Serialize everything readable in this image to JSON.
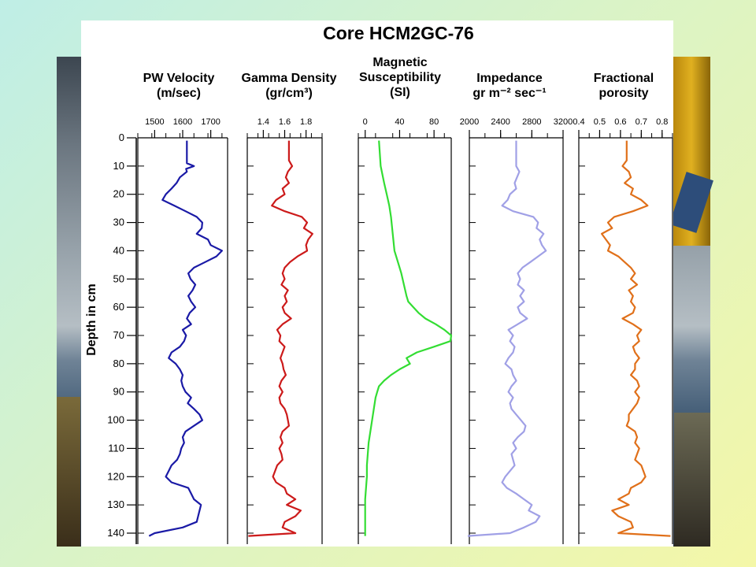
{
  "colors": {
    "pw_velocity": "#1a1aa6",
    "gamma_density": "#cc1a1a",
    "magnetic_susceptibility": "#33dd33",
    "impedance": "#a0a0e6",
    "fractional_porosity": "#e0701a"
  },
  "chart_data": {
    "type": "line",
    "title": "Core HCM2GC-76",
    "ylabel": "Depth in cm",
    "y_axis": {
      "min": 0,
      "max": 140,
      "ticks": [
        0,
        10,
        20,
        30,
        40,
        50,
        60,
        70,
        80,
        90,
        100,
        110,
        120,
        130,
        140
      ],
      "inverted": true
    },
    "panels": [
      {
        "id": "pw_velocity",
        "title_line1": "PW Velocity",
        "title_line2": "(m/sec)",
        "xlim": [
          1440,
          1760
        ],
        "ticks": [
          1500,
          1600,
          1700
        ],
        "tick_labels": [
          "1500",
          "1600",
          "1700"
        ],
        "series": {
          "depth": [
            1,
            9,
            10,
            11,
            12,
            14,
            16,
            18,
            20,
            22,
            24,
            26,
            28,
            30,
            32,
            34,
            36,
            38,
            40,
            42,
            44,
            46,
            48,
            50,
            52,
            54,
            56,
            58,
            60,
            62,
            64,
            66,
            68,
            70,
            72,
            74,
            76,
            78,
            80,
            82,
            84,
            86,
            88,
            90,
            92,
            94,
            96,
            98,
            100,
            102,
            104,
            106,
            108,
            110,
            112,
            114,
            116,
            118,
            120,
            122,
            124,
            126,
            128,
            130,
            132,
            134,
            136,
            138,
            140,
            141
          ],
          "values": [
            1615,
            1615,
            1640,
            1612,
            1615,
            1590,
            1578,
            1560,
            1540,
            1528,
            1570,
            1610,
            1650,
            1670,
            1668,
            1650,
            1690,
            1700,
            1740,
            1720,
            1680,
            1640,
            1620,
            1628,
            1645,
            1635,
            1620,
            1630,
            1645,
            1625,
            1615,
            1630,
            1600,
            1612,
            1605,
            1590,
            1560,
            1550,
            1575,
            1590,
            1600,
            1595,
            1600,
            1610,
            1630,
            1618,
            1640,
            1660,
            1670,
            1640,
            1610,
            1600,
            1605,
            1595,
            1590,
            1580,
            1560,
            1550,
            1540,
            1560,
            1620,
            1630,
            1640,
            1665,
            1660,
            1655,
            1650,
            1600,
            1500,
            1480
          ]
        }
      },
      {
        "id": "gamma_density",
        "title_line1": "Gamma Density",
        "title_line2": "(gr/cm³)",
        "xlim": [
          1.25,
          1.95
        ],
        "ticks": [
          1.4,
          1.6,
          1.8
        ],
        "tick_labels": [
          "1.4",
          "1.6",
          "1.8"
        ],
        "series": {
          "depth": [
            1,
            8,
            10,
            12,
            14,
            16,
            18,
            20,
            22,
            24,
            26,
            28,
            30,
            32,
            34,
            36,
            38,
            40,
            42,
            44,
            46,
            48,
            50,
            52,
            54,
            56,
            58,
            60,
            62,
            64,
            66,
            68,
            70,
            72,
            74,
            76,
            78,
            80,
            82,
            84,
            86,
            88,
            90,
            92,
            94,
            96,
            98,
            100,
            102,
            104,
            106,
            108,
            110,
            112,
            114,
            116,
            118,
            120,
            122,
            124,
            126,
            128,
            130,
            132,
            134,
            136,
            138,
            140,
            141
          ],
          "values": [
            1.64,
            1.64,
            1.67,
            1.63,
            1.61,
            1.64,
            1.58,
            1.6,
            1.52,
            1.48,
            1.6,
            1.76,
            1.81,
            1.78,
            1.86,
            1.82,
            1.8,
            1.81,
            1.72,
            1.65,
            1.6,
            1.58,
            1.6,
            1.57,
            1.63,
            1.6,
            1.62,
            1.58,
            1.6,
            1.66,
            1.58,
            1.53,
            1.56,
            1.55,
            1.6,
            1.58,
            1.56,
            1.58,
            1.59,
            1.61,
            1.57,
            1.55,
            1.58,
            1.55,
            1.56,
            1.6,
            1.62,
            1.63,
            1.64,
            1.58,
            1.56,
            1.58,
            1.55,
            1.57,
            1.58,
            1.53,
            1.51,
            1.49,
            1.52,
            1.6,
            1.62,
            1.7,
            1.62,
            1.75,
            1.7,
            1.6,
            1.58,
            1.7,
            1.26
          ]
        }
      },
      {
        "id": "magnetic_susceptibility",
        "title_line1": "Magnetic",
        "title_line2": "Susceptibility",
        "title_line3": "(SI)",
        "xlim": [
          -8,
          100
        ],
        "ticks": [
          0,
          40,
          80
        ],
        "tick_labels": [
          "0",
          "40",
          "80"
        ],
        "series": {
          "depth": [
            1,
            10,
            16,
            20,
            24,
            28,
            34,
            40,
            44,
            48,
            52,
            56,
            58,
            60,
            62,
            64,
            66,
            68,
            70,
            72,
            74,
            76,
            78,
            80,
            82,
            84,
            86,
            88,
            90,
            92,
            96,
            100,
            104,
            108,
            112,
            116,
            120,
            124,
            128,
            132,
            136,
            140,
            141
          ],
          "values": [
            16,
            18,
            22,
            25,
            28,
            30,
            32,
            34,
            38,
            42,
            45,
            48,
            50,
            56,
            62,
            70,
            82,
            92,
            100,
            99,
            80,
            60,
            48,
            52,
            40,
            30,
            22,
            16,
            14,
            12,
            10,
            8,
            6,
            4,
            3,
            2,
            2,
            1,
            0,
            0,
            0,
            0,
            0
          ]
        }
      },
      {
        "id": "impedance",
        "title_line1": "Impedance",
        "title_line2": "gr  m⁻² sec⁻¹",
        "xlim": [
          2000,
          3200
        ],
        "ticks": [
          2000,
          2400,
          2800,
          3200
        ],
        "tick_labels": [
          "2000",
          "2400",
          "2800",
          "3200"
        ],
        "series": {
          "depth": [
            1,
            10,
            12,
            14,
            16,
            18,
            20,
            22,
            24,
            26,
            28,
            30,
            32,
            34,
            36,
            38,
            40,
            42,
            44,
            46,
            48,
            50,
            52,
            54,
            56,
            58,
            60,
            62,
            64,
            66,
            68,
            70,
            72,
            74,
            76,
            78,
            80,
            82,
            84,
            86,
            88,
            90,
            92,
            94,
            96,
            98,
            100,
            102,
            104,
            106,
            108,
            110,
            112,
            114,
            116,
            118,
            120,
            122,
            124,
            126,
            128,
            130,
            132,
            134,
            136,
            138,
            140,
            141
          ],
          "values": [
            2600,
            2600,
            2640,
            2610,
            2580,
            2600,
            2520,
            2490,
            2420,
            2560,
            2820,
            2880,
            2860,
            2950,
            2900,
            2930,
            2980,
            2880,
            2780,
            2680,
            2620,
            2650,
            2620,
            2700,
            2650,
            2700,
            2620,
            2650,
            2740,
            2620,
            2500,
            2560,
            2520,
            2580,
            2560,
            2500,
            2460,
            2540,
            2560,
            2600,
            2540,
            2500,
            2560,
            2520,
            2540,
            2600,
            2660,
            2720,
            2700,
            2620,
            2560,
            2600,
            2540,
            2560,
            2580,
            2520,
            2460,
            2420,
            2480,
            2600,
            2700,
            2800,
            2760,
            2900,
            2850,
            2700,
            2520,
            1980
          ]
        }
      },
      {
        "id": "fractional_porosity",
        "title_line1": "Fractional",
        "title_line2": "porosity",
        "xlim": [
          0.4,
          0.85
        ],
        "ticks": [
          0.4,
          0.5,
          0.6,
          0.7,
          0.8
        ],
        "tick_labels": [
          "0.4",
          "0.5",
          "0.6",
          "0.7",
          "0.8"
        ],
        "series": {
          "depth": [
            1,
            8,
            10,
            12,
            14,
            16,
            18,
            20,
            22,
            24,
            26,
            28,
            30,
            32,
            34,
            36,
            38,
            40,
            42,
            44,
            46,
            48,
            50,
            52,
            54,
            56,
            58,
            60,
            62,
            64,
            66,
            68,
            70,
            72,
            74,
            76,
            78,
            80,
            82,
            84,
            86,
            88,
            90,
            92,
            94,
            96,
            98,
            100,
            102,
            104,
            106,
            108,
            110,
            112,
            114,
            116,
            118,
            120,
            122,
            124,
            126,
            128,
            130,
            132,
            134,
            136,
            138,
            140,
            141
          ],
          "values": [
            0.63,
            0.63,
            0.61,
            0.64,
            0.65,
            0.62,
            0.66,
            0.65,
            0.7,
            0.73,
            0.66,
            0.57,
            0.54,
            0.56,
            0.51,
            0.53,
            0.55,
            0.54,
            0.59,
            0.62,
            0.65,
            0.67,
            0.65,
            0.68,
            0.64,
            0.66,
            0.65,
            0.67,
            0.66,
            0.61,
            0.66,
            0.7,
            0.68,
            0.69,
            0.66,
            0.67,
            0.69,
            0.67,
            0.67,
            0.65,
            0.68,
            0.69,
            0.67,
            0.69,
            0.68,
            0.66,
            0.64,
            0.64,
            0.63,
            0.67,
            0.68,
            0.67,
            0.69,
            0.68,
            0.67,
            0.7,
            0.71,
            0.72,
            0.7,
            0.65,
            0.64,
            0.59,
            0.64,
            0.56,
            0.59,
            0.65,
            0.66,
            0.59,
            0.84
          ]
        }
      }
    ]
  }
}
